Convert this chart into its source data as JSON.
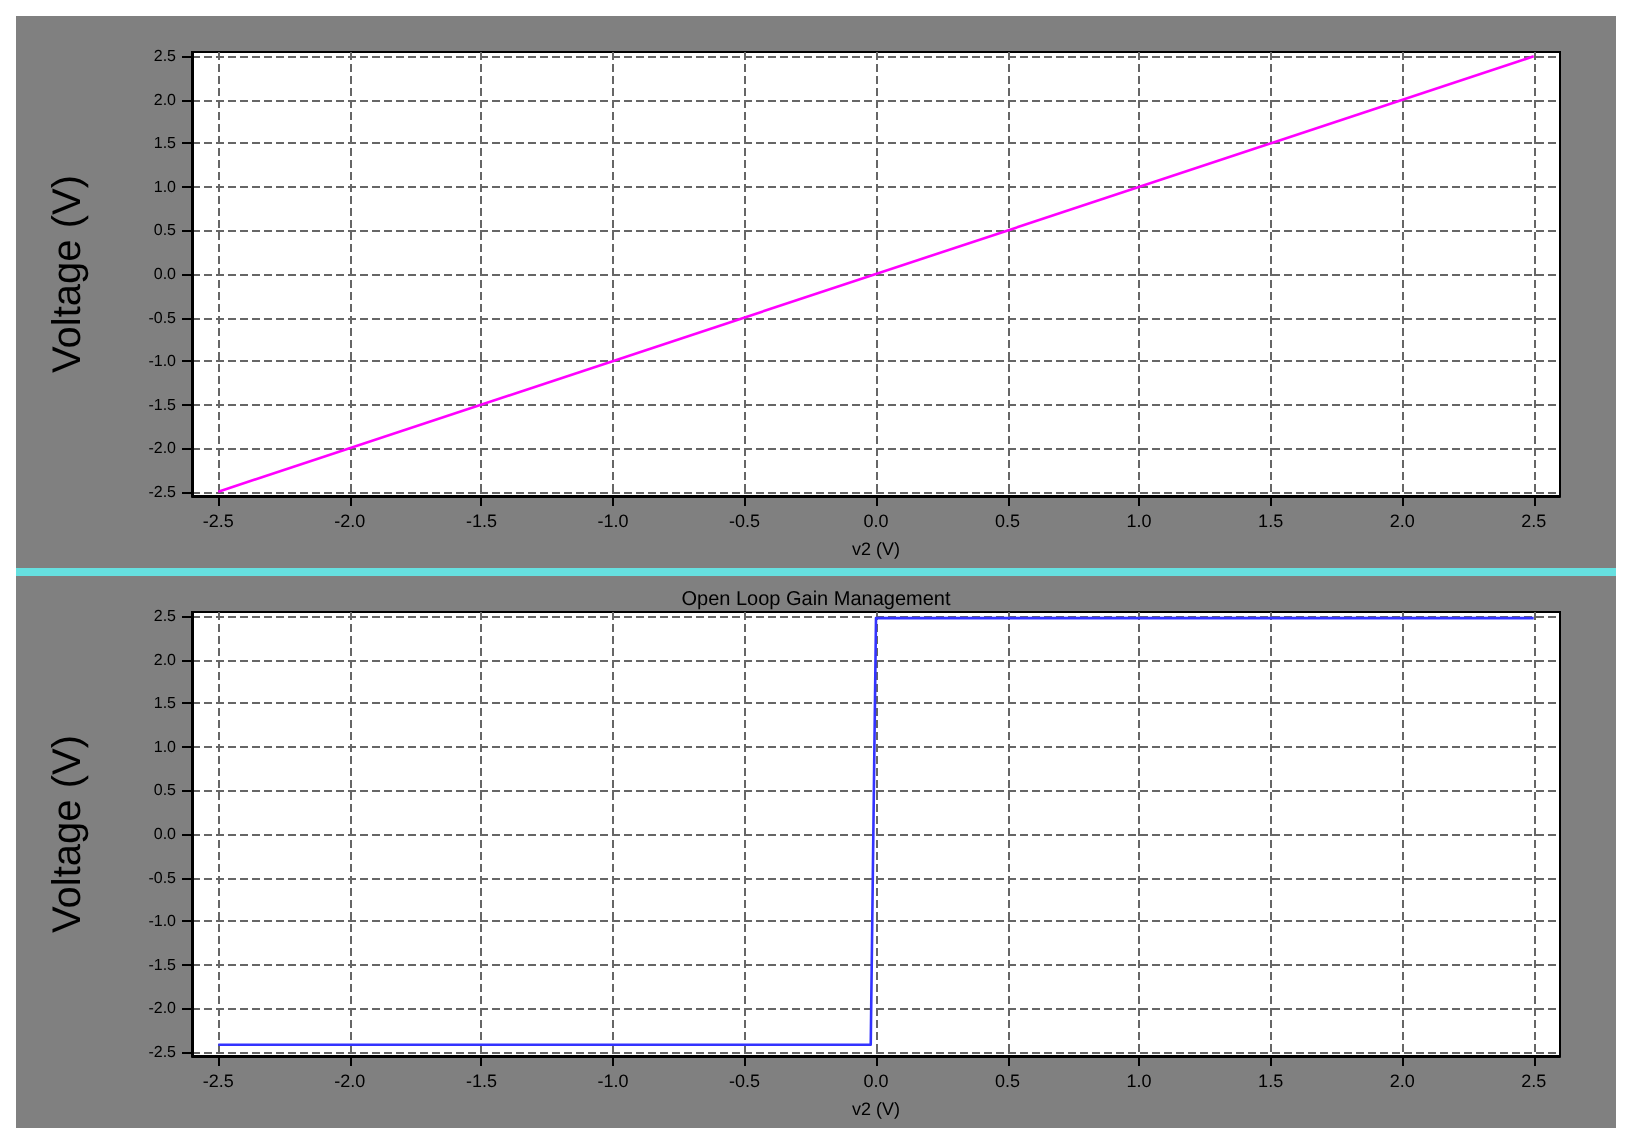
{
  "chart_data": [
    {
      "type": "line",
      "xlabel": "v2 (V)",
      "ylabel": "Voltage (V)",
      "x": [
        -2.5,
        2.5
      ],
      "series": [
        {
          "color": "#ff00ff",
          "values": [
            -2.5,
            2.5
          ]
        }
      ],
      "xlim": [
        -2.6,
        2.6
      ],
      "ylim": [
        -2.55,
        2.55
      ],
      "xticks": [
        {
          "value": -2.5,
          "label": "-2.5"
        },
        {
          "value": -2,
          "label": "-2.0"
        },
        {
          "value": -1.5,
          "label": "-1.5"
        },
        {
          "value": -1,
          "label": "-1.0"
        },
        {
          "value": -0.5,
          "label": "-0.5"
        },
        {
          "value": 0,
          "label": "0.0"
        },
        {
          "value": 0.5,
          "label": "0.5"
        },
        {
          "value": 1,
          "label": "1.0"
        },
        {
          "value": 1.5,
          "label": "1.5"
        },
        {
          "value": 2,
          "label": "2.0"
        },
        {
          "value": 2.5,
          "label": "2.5"
        }
      ],
      "yticks": [
        {
          "value": -2.5,
          "label": "-2.5"
        },
        {
          "value": -2,
          "label": "-2.0"
        },
        {
          "value": -1.5,
          "label": "-1.5"
        },
        {
          "value": -1,
          "label": "-1.0"
        },
        {
          "value": -0.5,
          "label": "-0.5"
        },
        {
          "value": 0,
          "label": "0.0"
        },
        {
          "value": 0.5,
          "label": "0.5"
        },
        {
          "value": 1,
          "label": "1.0"
        },
        {
          "value": 1.5,
          "label": "1.5"
        },
        {
          "value": 2,
          "label": "2.0"
        },
        {
          "value": 2.5,
          "label": "2.5"
        }
      ],
      "grid": true,
      "line_style": "solid"
    },
    {
      "type": "line",
      "title": "Open Loop Gain Management",
      "xlabel": "v2 (V)",
      "ylabel": "Voltage (V)",
      "x": [
        -2.5,
        -0.02,
        0,
        2.5
      ],
      "series": [
        {
          "color": "#3333ff",
          "values": [
            -2.42,
            -2.42,
            2.48,
            2.48
          ]
        }
      ],
      "xlim": [
        -2.6,
        2.6
      ],
      "ylim": [
        -2.55,
        2.55
      ],
      "xticks": [
        {
          "value": -2.5,
          "label": "-2.5"
        },
        {
          "value": -2,
          "label": "-2.0"
        },
        {
          "value": -1.5,
          "label": "-1.5"
        },
        {
          "value": -1,
          "label": "-1.0"
        },
        {
          "value": -0.5,
          "label": "-0.5"
        },
        {
          "value": 0,
          "label": "0.0"
        },
        {
          "value": 0.5,
          "label": "0.5"
        },
        {
          "value": 1,
          "label": "1.0"
        },
        {
          "value": 1.5,
          "label": "1.5"
        },
        {
          "value": 2,
          "label": "2.0"
        },
        {
          "value": 2.5,
          "label": "2.5"
        }
      ],
      "yticks": [
        {
          "value": -2.5,
          "label": "-2.5"
        },
        {
          "value": -2,
          "label": "-2.0"
        },
        {
          "value": -1.5,
          "label": "-1.5"
        },
        {
          "value": -1,
          "label": "-1.0"
        },
        {
          "value": -0.5,
          "label": "-0.5"
        },
        {
          "value": 0,
          "label": "0.0"
        },
        {
          "value": 0.5,
          "label": "0.5"
        },
        {
          "value": 1,
          "label": "1.0"
        },
        {
          "value": 1.5,
          "label": "1.5"
        },
        {
          "value": 2,
          "label": "2.0"
        },
        {
          "value": 2.5,
          "label": "2.5"
        }
      ],
      "grid": true,
      "line_style": "solid"
    }
  ]
}
